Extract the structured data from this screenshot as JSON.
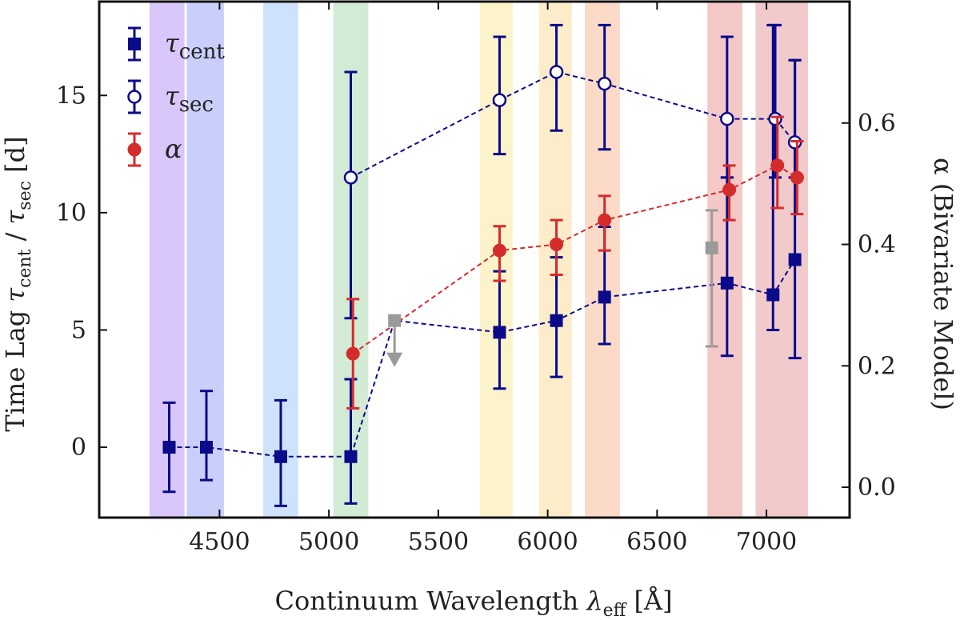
{
  "chart_data": {
    "type": "scatter",
    "xlabel_main": "Continuum Wavelength ",
    "xlabel_lambda": "λ",
    "xlabel_sub": "eff",
    "xlabel_unit": " [Å]",
    "ylabel_left_prefix": "Time Lag ",
    "ylabel_left_tau1": "τ",
    "ylabel_left_sub1": "cent",
    "ylabel_left_sep": " / ",
    "ylabel_left_tau2": "τ",
    "ylabel_left_sub2": "sec",
    "ylabel_left_unit": " [d]",
    "ylabel_right": "α (Bivariate Model)",
    "xlim": [
      3950,
      7380
    ],
    "ylim_left": [
      -3.0,
      19.0
    ],
    "ylim_right": [
      -0.05,
      0.8
    ],
    "x_ticks": [
      4500,
      5000,
      5500,
      6000,
      6500,
      7000
    ],
    "y_left_ticks": [
      0,
      5,
      10,
      15
    ],
    "y_right_ticks": [
      0.0,
      0.2,
      0.4,
      0.6
    ],
    "y_right_tick_labels": [
      "0.0",
      "0.2",
      "0.4",
      "0.6"
    ],
    "bands": [
      {
        "x0": 4180,
        "x1": 4340,
        "color": "#d9c6fb"
      },
      {
        "x0": 4350,
        "x1": 4520,
        "color": "#c9cefb"
      },
      {
        "x0": 4700,
        "x1": 4860,
        "color": "#cfe2fb"
      },
      {
        "x0": 5020,
        "x1": 5180,
        "color": "#d3ead4"
      },
      {
        "x0": 5690,
        "x1": 5840,
        "color": "#fcf3cb"
      },
      {
        "x0": 5960,
        "x1": 6110,
        "color": "#fcecc9"
      },
      {
        "x0": 6170,
        "x1": 6330,
        "color": "#fbdbc8"
      },
      {
        "x0": 6730,
        "x1": 6890,
        "color": "#f5c8c8"
      },
      {
        "x0": 6950,
        "x1": 7190,
        "color": "#f1cacb"
      }
    ],
    "series": [
      {
        "key": "tau_cent",
        "legend_main": "τ",
        "legend_sub": "cent",
        "color": "#0a0a8a",
        "marker": "square-filled",
        "axis": "left",
        "x": [
          4270,
          4440,
          4780,
          5100,
          5780,
          6040,
          6260,
          6820,
          7030,
          7130
        ],
        "y": [
          0.0,
          0.0,
          -0.4,
          -0.4,
          4.9,
          5.4,
          6.4,
          7.0,
          6.5,
          8.0
        ],
        "err_lo": [
          1.9,
          1.4,
          2.1,
          2.0,
          2.4,
          2.4,
          2.0,
          3.1,
          1.5,
          4.2
        ],
        "err_hi": [
          1.9,
          2.4,
          2.4,
          3.3,
          2.6,
          2.7,
          3.0,
          4.5,
          11.5,
          8.5
        ]
      },
      {
        "key": "tau_sec",
        "legend_main": "τ",
        "legend_sub": "sec",
        "color": "#0a0a8a",
        "marker": "circle-open",
        "axis": "left",
        "x": [
          5100,
          5780,
          6040,
          6260,
          6820,
          7040,
          7130
        ],
        "y": [
          11.5,
          14.8,
          16.0,
          15.5,
          14.0,
          14.0,
          13.0
        ],
        "err_lo": [
          6.0,
          2.3,
          2.5,
          2.8,
          2.5,
          2.5,
          1.5
        ],
        "err_hi": [
          4.5,
          2.7,
          2.0,
          2.5,
          3.5,
          4.0,
          3.5
        ]
      },
      {
        "key": "alpha",
        "legend_main": "α",
        "legend_sub": "",
        "color": "#d42b2b",
        "marker": "circle-filled",
        "axis": "right",
        "x": [
          5110,
          5780,
          6040,
          6260,
          6830,
          7050,
          7140
        ],
        "y": [
          0.22,
          0.39,
          0.4,
          0.44,
          0.49,
          0.53,
          0.51
        ],
        "err_lo": [
          0.09,
          0.05,
          0.05,
          0.05,
          0.05,
          0.07,
          0.06
        ],
        "err_hi": [
          0.09,
          0.04,
          0.04,
          0.04,
          0.04,
          0.08,
          0.06
        ]
      },
      {
        "key": "gray_points",
        "legend_main": "",
        "legend_sub": "",
        "color": "#9a9a9a",
        "marker": "square-filled",
        "axis": "left",
        "x": [
          5300,
          6750
        ],
        "y": [
          5.4,
          8.5
        ],
        "err_lo": [
          null,
          4.2
        ],
        "err_hi": [
          null,
          1.6
        ],
        "upper_limit": [
          true,
          false
        ]
      }
    ]
  }
}
